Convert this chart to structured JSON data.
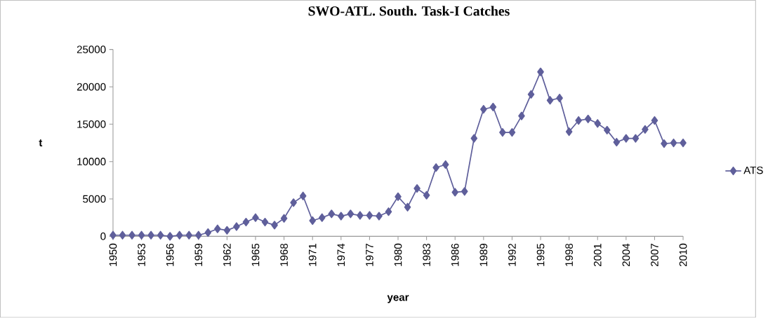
{
  "chart_data": {
    "type": "line",
    "title": "SWO-ATL. South. Task-I Catches",
    "xlabel": "year",
    "ylabel": "t",
    "categories": [
      "1950",
      null,
      null,
      "1953",
      null,
      null,
      "1956",
      null,
      null,
      "1959",
      null,
      null,
      "1962",
      null,
      null,
      "1965",
      null,
      null,
      "1968",
      null,
      null,
      "1971",
      null,
      null,
      "1974",
      null,
      null,
      "1977",
      null,
      null,
      "1980",
      null,
      null,
      "1983",
      null,
      null,
      "1986",
      null,
      null,
      "1989",
      null,
      null,
      "1992",
      null,
      null,
      "1995",
      null,
      null,
      "1998",
      null,
      null,
      "2001",
      null,
      null,
      "2004",
      null,
      null,
      "2007",
      null,
      null,
      "2010"
    ],
    "series": [
      {
        "name": "ATS",
        "color": "#5f5f9b",
        "values": [
          150,
          150,
          150,
          150,
          150,
          150,
          0,
          150,
          150,
          150,
          500,
          1000,
          800,
          1300,
          1900,
          2500,
          1900,
          1500,
          2400,
          4500,
          5400,
          2100,
          2500,
          3000,
          2700,
          3000,
          2800,
          2800,
          2700,
          3300,
          5300,
          3900,
          6400,
          5500,
          9200,
          9600,
          5900,
          6000,
          13100,
          17000,
          17300,
          13900,
          13900,
          16100,
          19000,
          22000,
          18200,
          18500,
          14000,
          15500,
          15700,
          15100,
          14200,
          12600,
          13100,
          13100,
          14300,
          15500,
          12400,
          12500,
          12500
        ]
      }
    ],
    "ylim": [
      0,
      25000
    ],
    "yticks": [
      0,
      5000,
      10000,
      15000,
      20000,
      25000
    ],
    "marker": "diamond",
    "legend": "right"
  }
}
